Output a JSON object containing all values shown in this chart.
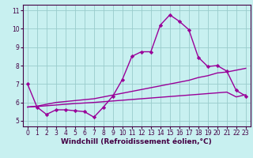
{
  "xlabel": "Windchill (Refroidissement éolien,°C)",
  "bg_color": "#c8f0f0",
  "grid_color": "#99cccc",
  "line_color": "#990099",
  "marker": "D",
  "marker_size": 2.2,
  "line_width": 1.0,
  "xlim": [
    -0.5,
    23.5
  ],
  "ylim": [
    4.7,
    11.3
  ],
  "xticks": [
    0,
    1,
    2,
    3,
    4,
    5,
    6,
    7,
    8,
    9,
    10,
    11,
    12,
    13,
    14,
    15,
    16,
    17,
    18,
    19,
    20,
    21,
    22,
    23
  ],
  "yticks": [
    5,
    6,
    7,
    8,
    9,
    10,
    11
  ],
  "line1_x": [
    0,
    1,
    2,
    3,
    4,
    5,
    6,
    7,
    8,
    9,
    10,
    11,
    12,
    13,
    14,
    15,
    16,
    17,
    18,
    19,
    20,
    21,
    22,
    23
  ],
  "line1_y": [
    7.0,
    5.75,
    5.35,
    5.6,
    5.6,
    5.55,
    5.5,
    5.2,
    5.75,
    6.35,
    7.25,
    8.5,
    8.75,
    8.75,
    10.2,
    10.75,
    10.4,
    9.95,
    8.45,
    7.95,
    8.0,
    7.7,
    6.65,
    6.35
  ],
  "line2_x": [
    0,
    1,
    2,
    3,
    4,
    5,
    6,
    7,
    8,
    9,
    10,
    11,
    12,
    13,
    14,
    15,
    16,
    17,
    18,
    19,
    20,
    21,
    22,
    23
  ],
  "line2_y": [
    5.75,
    5.8,
    5.9,
    6.0,
    6.05,
    6.1,
    6.15,
    6.2,
    6.3,
    6.4,
    6.5,
    6.6,
    6.7,
    6.8,
    6.9,
    7.0,
    7.1,
    7.2,
    7.35,
    7.45,
    7.6,
    7.65,
    7.75,
    7.85
  ],
  "line3_x": [
    0,
    1,
    2,
    3,
    4,
    5,
    6,
    7,
    8,
    9,
    10,
    11,
    12,
    13,
    14,
    15,
    16,
    17,
    18,
    19,
    20,
    21,
    22,
    23
  ],
  "line3_y": [
    5.75,
    5.78,
    5.82,
    5.86,
    5.9,
    5.94,
    5.97,
    6.0,
    6.04,
    6.08,
    6.12,
    6.16,
    6.2,
    6.24,
    6.28,
    6.32,
    6.36,
    6.4,
    6.44,
    6.48,
    6.52,
    6.56,
    6.3,
    6.42
  ],
  "xlabel_fontsize": 6.5,
  "tick_fontsize": 5.5,
  "spine_color": "#440044",
  "text_color": "#440044"
}
